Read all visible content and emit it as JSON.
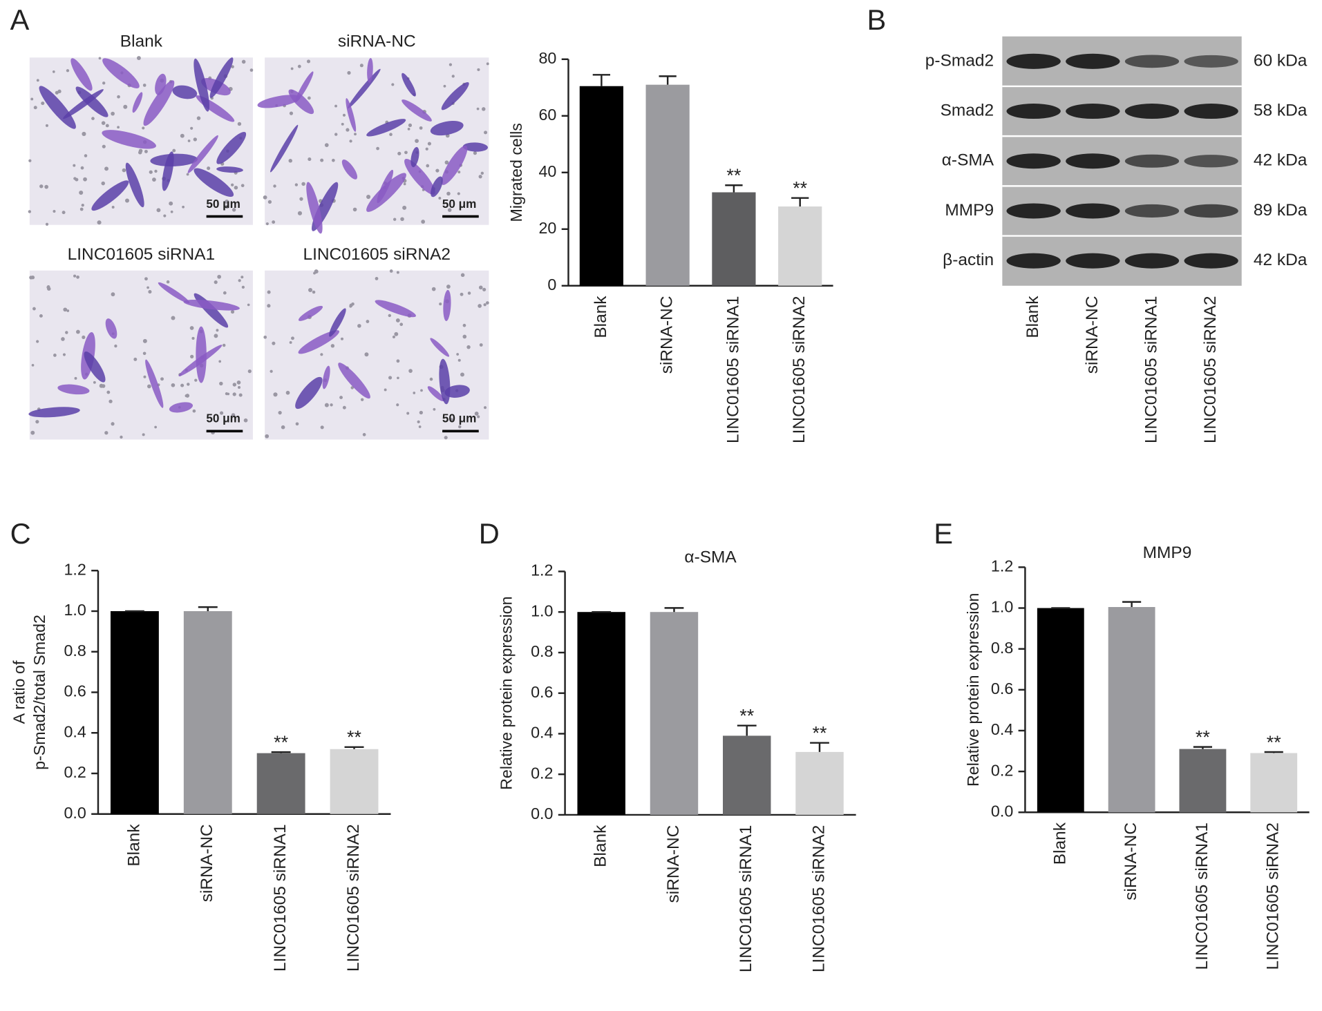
{
  "panel_labels": [
    "A",
    "B",
    "C",
    "D",
    "E"
  ],
  "micrographs": [
    {
      "title": "Blank",
      "scale_bar": "50 μm"
    },
    {
      "title": "siRNA-NC",
      "scale_bar": "50 μm"
    },
    {
      "title": "LINC01605 siRNA1",
      "scale_bar": "50 μm"
    },
    {
      "title": "LINC01605 siRNA2",
      "scale_bar": "50 μm"
    }
  ],
  "blot": {
    "proteins": [
      {
        "name": "p-Smad2",
        "size": "60 kDa"
      },
      {
        "name": "Smad2",
        "size": "58 kDa"
      },
      {
        "name": "α-SMA",
        "size": "42 kDa"
      },
      {
        "name": "MMP9",
        "size": "89 kDa"
      },
      {
        "name": "β-actin",
        "size": "42 kDa"
      }
    ],
    "lanes": [
      "Blank",
      "siRNA-NC",
      "LINC01605 siRNA1",
      "LINC01605 siRNA2"
    ]
  },
  "chart_data": [
    {
      "type": "bar",
      "ylabel": "Migrated cells",
      "categories": [
        "Blank",
        "siRNA-NC",
        "LINC01605 siRNA1",
        "LINC01605 siRNA2"
      ],
      "values": [
        70.5,
        71,
        33,
        28
      ],
      "errors": [
        4,
        3,
        2.5,
        3
      ],
      "significance": [
        null,
        null,
        "**",
        "**"
      ],
      "colors": [
        "#000000",
        "#9b9b9f",
        "#5e5e60",
        "#d5d5d5"
      ],
      "ylim": [
        0,
        80
      ],
      "yticks": [
        0,
        20,
        40,
        60,
        80
      ]
    },
    {
      "type": "bar",
      "ylabel": [
        "A ratio of",
        "p-Smad2/total Smad2"
      ],
      "categories": [
        "Blank",
        "siRNA-NC",
        "LINC01605 siRNA1",
        "LINC01605 siRNA2"
      ],
      "values": [
        1,
        1,
        0.3,
        0.32
      ],
      "errors": [
        0,
        0.02,
        0.005,
        0.01
      ],
      "significance": [
        null,
        null,
        "**",
        "**"
      ],
      "colors": [
        "#000000",
        "#9b9b9f",
        "#6a6a6c",
        "#d5d5d5"
      ],
      "ylim": [
        0,
        1.2
      ],
      "yticks": [
        {
          "value": 0,
          "label": "0.0"
        },
        0.2,
        0.4,
        0.6,
        0.8,
        {
          "value": 1,
          "label": "1.0"
        },
        1.2
      ]
    },
    {
      "type": "bar",
      "title": "α-SMA",
      "ylabel": "Relative protein expression",
      "categories": [
        "Blank",
        "siRNA-NC",
        "LINC01605 siRNA1",
        "LINC01605 siRNA2"
      ],
      "values": [
        1,
        1,
        0.39,
        0.31
      ],
      "errors": [
        0,
        0.02,
        0.05,
        0.045
      ],
      "significance": [
        null,
        null,
        "**",
        "**"
      ],
      "colors": [
        "#000000",
        "#9b9b9f",
        "#6a6a6c",
        "#d5d5d5"
      ],
      "ylim": [
        0,
        1.2
      ],
      "yticks": [
        {
          "value": 0,
          "label": "0.0"
        },
        0.2,
        0.4,
        0.6,
        0.8,
        {
          "value": 1,
          "label": "1.0"
        },
        1.2
      ]
    },
    {
      "type": "bar",
      "title": "MMP9",
      "ylabel": "Relative protein expression",
      "categories": [
        "Blank",
        "siRNA-NC",
        "LINC01605 siRNA1",
        "LINC01605 siRNA2"
      ],
      "values": [
        1,
        1.005,
        0.31,
        0.29
      ],
      "errors": [
        0,
        0.025,
        0.01,
        0.005
      ],
      "significance": [
        null,
        null,
        "**",
        "**"
      ],
      "colors": [
        "#000000",
        "#9b9b9f",
        "#6a6a6c",
        "#d5d5d5"
      ],
      "ylim": [
        0,
        1.2
      ],
      "yticks": [
        {
          "value": 0,
          "label": "0.0"
        },
        0.2,
        0.4,
        0.6,
        0.8,
        {
          "value": 1,
          "label": "1.0"
        },
        1.2
      ]
    }
  ]
}
